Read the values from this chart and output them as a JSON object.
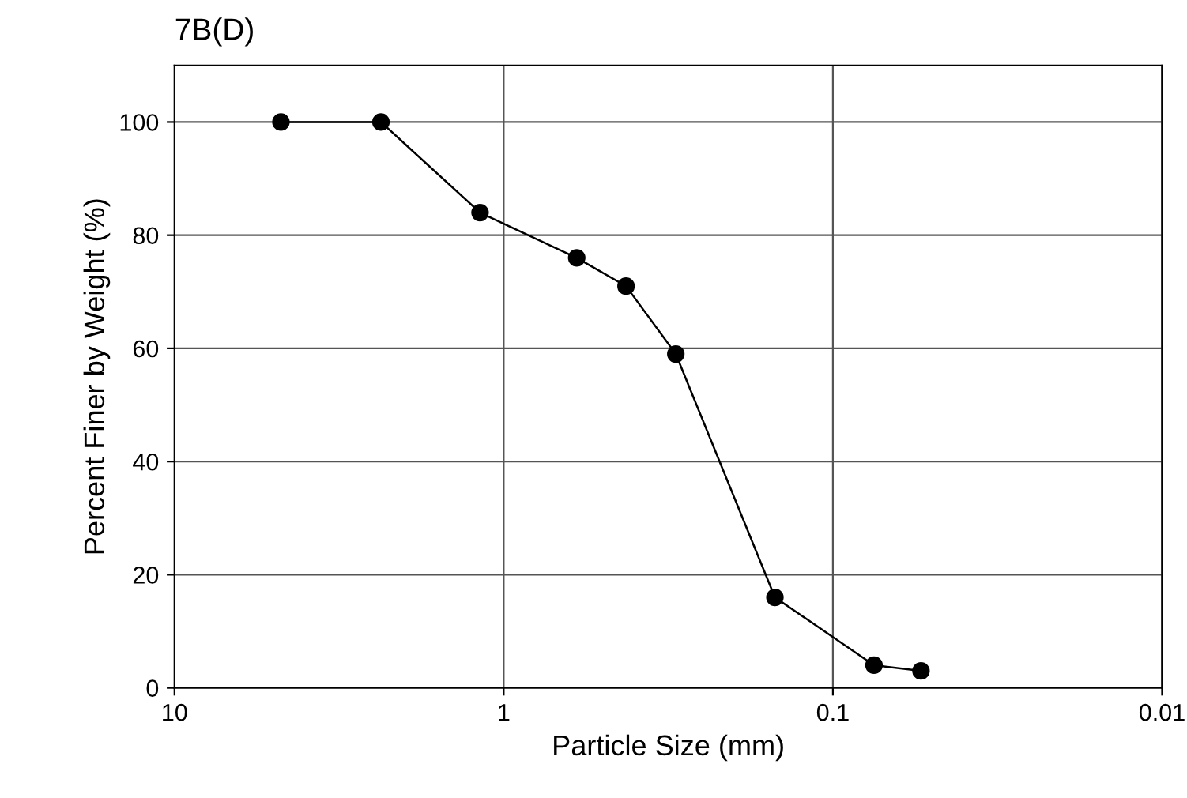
{
  "chart_data": {
    "type": "line",
    "title": "7B(D)",
    "xlabel": "Particle Size (mm)",
    "ylabel": "Percent Finer by Weight (%)",
    "x": [
      4.75,
      2.36,
      1.18,
      0.6,
      0.425,
      0.3,
      0.15,
      0.075,
      0.054
    ],
    "series": [
      {
        "color": "#000000",
        "values": [
          100,
          100,
          84,
          76,
          71,
          59,
          16,
          4,
          3
        ]
      }
    ],
    "log": "x",
    "xlim": [
      10,
      0.01
    ],
    "xticks": [
      10,
      1,
      0.1,
      0.01
    ],
    "ylim": [
      0,
      110
    ],
    "yticks": [
      0,
      20,
      40,
      60,
      80,
      100
    ],
    "grid": true,
    "marker": "circle",
    "line_style": "solid"
  }
}
